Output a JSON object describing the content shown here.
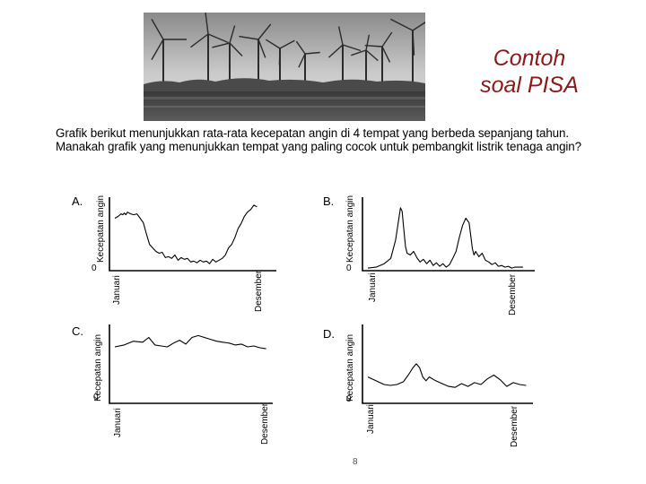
{
  "title": {
    "line1": "Contoh",
    "line2": "soal PISA"
  },
  "question": "Grafik berikut menunjukkan rata-rata kecepatan angin di 4 tempat yang berbeda  sepanjang tahun. Manakah grafik yang menunjukkan tempat yang paling cocok untuk pembangkit listrik tenaga angin?",
  "page_number": "8",
  "chart_data": [
    {
      "type": "line",
      "panel": "A.",
      "ylabel": "Kecepatan angin",
      "yzero": "0",
      "xstart": "Januari",
      "xend": "Desember",
      "x": [
        0,
        2,
        4,
        5,
        6,
        7,
        8,
        10,
        12,
        14,
        16,
        18,
        20,
        22,
        24,
        26,
        28,
        30,
        32,
        34,
        36,
        38,
        40,
        42,
        44,
        46,
        48,
        50,
        52,
        54,
        56,
        58,
        60,
        62,
        64,
        66,
        68,
        70,
        72,
        74,
        76,
        78,
        80,
        82,
        84,
        86,
        88,
        90
      ],
      "y": [
        60,
        62,
        65,
        64,
        66,
        64,
        67,
        65,
        64,
        65,
        60,
        55,
        42,
        30,
        26,
        22,
        20,
        21,
        15,
        16,
        14,
        18,
        12,
        15,
        13,
        14,
        10,
        11,
        9,
        12,
        10,
        11,
        8,
        13,
        10,
        12,
        14,
        18,
        26,
        30,
        38,
        48,
        54,
        62,
        67,
        70,
        75,
        73
      ]
    },
    {
      "type": "line",
      "panel": "B.",
      "ylabel": "Kecepatan angin",
      "yzero": "0",
      "xstart": "Januari",
      "xend": "Desember",
      "x": [
        0,
        5,
        10,
        14,
        17,
        19,
        20,
        21,
        22,
        23,
        24,
        26,
        28,
        30,
        32,
        34,
        36,
        38,
        40,
        42,
        44,
        46,
        48,
        50,
        52,
        54,
        56,
        58,
        60,
        62,
        63,
        64,
        65,
        66,
        68,
        70,
        72,
        74,
        76,
        78,
        80,
        82,
        84,
        86,
        88,
        90,
        95
      ],
      "y": [
        3,
        4,
        8,
        14,
        35,
        60,
        72,
        68,
        48,
        28,
        20,
        18,
        22,
        15,
        10,
        13,
        8,
        12,
        6,
        9,
        5,
        8,
        4,
        7,
        14,
        22,
        38,
        52,
        60,
        55,
        40,
        25,
        18,
        22,
        16,
        20,
        12,
        10,
        7,
        9,
        5,
        6,
        4,
        5,
        3,
        4,
        4
      ]
    },
    {
      "type": "line",
      "panel": "C.",
      "ylabel": "Kecepatan angin",
      "yzero": "0",
      "xstart": "Januari",
      "xend": "Desember",
      "x": [
        0,
        6,
        12,
        18,
        22,
        26,
        30,
        34,
        38,
        42,
        46,
        50,
        54,
        58,
        62,
        66,
        70,
        74,
        78,
        82,
        86,
        90,
        94,
        98
      ],
      "y": [
        60,
        62,
        66,
        65,
        70,
        62,
        61,
        60,
        64,
        67,
        63,
        70,
        72,
        70,
        68,
        66,
        65,
        64,
        62,
        63,
        60,
        61,
        59,
        58
      ]
    },
    {
      "type": "line",
      "panel": "D.",
      "ylabel": "Kecepatan angin",
      "yzero": "0",
      "xstart": "Januari",
      "xend": "Desember",
      "x": [
        0,
        5,
        10,
        14,
        18,
        22,
        25,
        28,
        30,
        32,
        34,
        36,
        38,
        42,
        46,
        50,
        54,
        58,
        62,
        66,
        70,
        74,
        78,
        82,
        86,
        90,
        94,
        98
      ],
      "y": [
        28,
        24,
        20,
        19,
        20,
        23,
        30,
        38,
        42,
        38,
        28,
        24,
        28,
        24,
        21,
        18,
        17,
        21,
        18,
        22,
        20,
        26,
        30,
        25,
        18,
        22,
        20,
        19
      ]
    }
  ]
}
